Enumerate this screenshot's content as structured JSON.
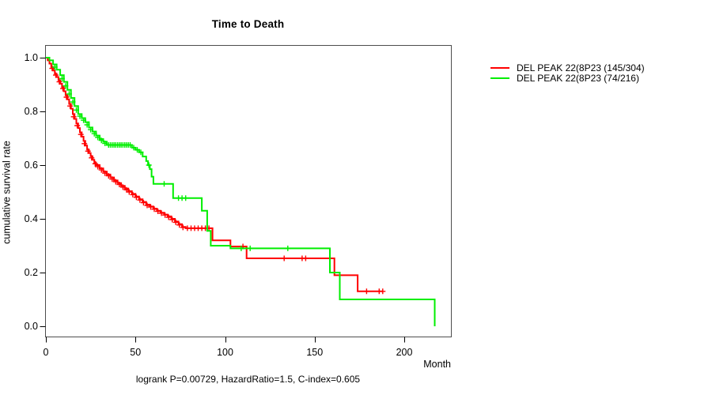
{
  "window": {
    "background": "#ffffff",
    "frame_color": "#4d4d4d"
  },
  "chart_data": {
    "type": "line",
    "subtype": "kaplan-meier-step",
    "title": "Time to Death",
    "xlabel": "Month",
    "ylabel": "cumulative survival rate",
    "annotation": "logrank P=0.00729, HazardRatio=1.5, C-index=0.605",
    "xlim": [
      0,
      226
    ],
    "ylim": [
      0.0,
      1.0
    ],
    "x_ticks": [
      0,
      50,
      100,
      150,
      200
    ],
    "y_ticks": [
      "1.0",
      "0.8",
      "0.6",
      "0.4",
      "0.2",
      "0.0"
    ],
    "grid": false,
    "legend_position": "outside-top-right",
    "series": [
      {
        "key": "red",
        "label": "DEL PEAK 22(8P23 (145/304)",
        "events": "145/304",
        "color": "#ff0000",
        "end_month": 188,
        "steps": [
          [
            0,
            1.0
          ],
          [
            1,
            0.99
          ],
          [
            2,
            0.978
          ],
          [
            3,
            0.965
          ],
          [
            4,
            0.952
          ],
          [
            5,
            0.94
          ],
          [
            6,
            0.928
          ],
          [
            7,
            0.916
          ],
          [
            8,
            0.903
          ],
          [
            9,
            0.89
          ],
          [
            10,
            0.875
          ],
          [
            11,
            0.86
          ],
          [
            12,
            0.845
          ],
          [
            13,
            0.828
          ],
          [
            14,
            0.81
          ],
          [
            15,
            0.79
          ],
          [
            16,
            0.772
          ],
          [
            17,
            0.755
          ],
          [
            18,
            0.738
          ],
          [
            19,
            0.722
          ],
          [
            20,
            0.706
          ],
          [
            21,
            0.69
          ],
          [
            22,
            0.673
          ],
          [
            23,
            0.658
          ],
          [
            24,
            0.645
          ],
          [
            25,
            0.633
          ],
          [
            26,
            0.62
          ],
          [
            27,
            0.61
          ],
          [
            28,
            0.6
          ],
          [
            30,
            0.588
          ],
          [
            32,
            0.576
          ],
          [
            34,
            0.565
          ],
          [
            36,
            0.554
          ],
          [
            38,
            0.543
          ],
          [
            40,
            0.533
          ],
          [
            42,
            0.523
          ],
          [
            44,
            0.513
          ],
          [
            46,
            0.503
          ],
          [
            48,
            0.493
          ],
          [
            50,
            0.483
          ],
          [
            52,
            0.473
          ],
          [
            54,
            0.463
          ],
          [
            56,
            0.453
          ],
          [
            58,
            0.446
          ],
          [
            60,
            0.438
          ],
          [
            62,
            0.43
          ],
          [
            64,
            0.423
          ],
          [
            66,
            0.416
          ],
          [
            68,
            0.409
          ],
          [
            70,
            0.4
          ],
          [
            72,
            0.39
          ],
          [
            74,
            0.38
          ],
          [
            76,
            0.37
          ],
          [
            78,
            0.365
          ],
          [
            93,
            0.32
          ],
          [
            103,
            0.297
          ],
          [
            112,
            0.253
          ],
          [
            161,
            0.19
          ],
          [
            174,
            0.13
          ]
        ],
        "censors": [
          [
            3.5,
            0.96
          ],
          [
            5.5,
            0.935
          ],
          [
            7.5,
            0.91
          ],
          [
            9.5,
            0.885
          ],
          [
            11.5,
            0.853
          ],
          [
            13.5,
            0.82
          ],
          [
            15.5,
            0.78
          ],
          [
            17.5,
            0.747
          ],
          [
            19.5,
            0.714
          ],
          [
            21.5,
            0.68
          ],
          [
            23.5,
            0.652
          ],
          [
            25.5,
            0.627
          ],
          [
            27.5,
            0.605
          ],
          [
            29,
            0.594
          ],
          [
            31,
            0.582
          ],
          [
            33,
            0.57
          ],
          [
            35,
            0.56
          ],
          [
            37,
            0.548
          ],
          [
            39,
            0.538
          ],
          [
            41,
            0.528
          ],
          [
            43,
            0.518
          ],
          [
            45,
            0.508
          ],
          [
            46.5,
            0.5
          ],
          [
            48.5,
            0.49
          ],
          [
            50.5,
            0.48
          ],
          [
            52.5,
            0.47
          ],
          [
            54.5,
            0.46
          ],
          [
            56.5,
            0.45
          ],
          [
            58.5,
            0.444
          ],
          [
            60.5,
            0.436
          ],
          [
            62.5,
            0.428
          ],
          [
            64.5,
            0.421
          ],
          [
            66.5,
            0.414
          ],
          [
            68.5,
            0.406
          ],
          [
            70.5,
            0.397
          ],
          [
            72.5,
            0.387
          ],
          [
            74.5,
            0.377
          ],
          [
            76.5,
            0.368
          ],
          [
            79,
            0.365
          ],
          [
            81,
            0.365
          ],
          [
            83,
            0.365
          ],
          [
            85,
            0.365
          ],
          [
            87,
            0.365
          ],
          [
            89,
            0.365
          ],
          [
            91,
            0.365
          ],
          [
            110,
            0.297
          ],
          [
            133,
            0.253
          ],
          [
            143,
            0.253
          ],
          [
            145,
            0.253
          ],
          [
            179,
            0.13
          ],
          [
            186,
            0.13
          ],
          [
            188,
            0.13
          ]
        ]
      },
      {
        "key": "green",
        "label": "DEL PEAK 22(8P23 (74/216)",
        "events": "74/216",
        "color": "#00ee00",
        "end_month": 217,
        "steps": [
          [
            0,
            1.0
          ],
          [
            2,
            0.99
          ],
          [
            4,
            0.975
          ],
          [
            6,
            0.955
          ],
          [
            8,
            0.935
          ],
          [
            10,
            0.91
          ],
          [
            12,
            0.88
          ],
          [
            14,
            0.85
          ],
          [
            16,
            0.82
          ],
          [
            18,
            0.79
          ],
          [
            20,
            0.775
          ],
          [
            22,
            0.76
          ],
          [
            24,
            0.74
          ],
          [
            26,
            0.725
          ],
          [
            28,
            0.71
          ],
          [
            30,
            0.697
          ],
          [
            32,
            0.687
          ],
          [
            34,
            0.675
          ],
          [
            48,
            0.665
          ],
          [
            50,
            0.657
          ],
          [
            52,
            0.648
          ],
          [
            54,
            0.632
          ],
          [
            56,
            0.615
          ],
          [
            57,
            0.6
          ],
          [
            58,
            0.585
          ],
          [
            59,
            0.557
          ],
          [
            60,
            0.53
          ],
          [
            71,
            0.477
          ],
          [
            87,
            0.43
          ],
          [
            90,
            0.355
          ],
          [
            92,
            0.3
          ],
          [
            103,
            0.29
          ],
          [
            158.5,
            0.2
          ],
          [
            164,
            0.1
          ],
          [
            217,
            0.0
          ]
        ],
        "censors": [
          [
            5,
            0.965
          ],
          [
            9,
            0.922
          ],
          [
            11,
            0.895
          ],
          [
            13,
            0.865
          ],
          [
            15,
            0.835
          ],
          [
            17,
            0.805
          ],
          [
            19,
            0.782
          ],
          [
            21,
            0.767
          ],
          [
            23,
            0.75
          ],
          [
            25,
            0.732
          ],
          [
            27,
            0.717
          ],
          [
            29,
            0.703
          ],
          [
            31,
            0.692
          ],
          [
            33,
            0.681
          ],
          [
            35,
            0.675
          ],
          [
            36,
            0.675
          ],
          [
            37,
            0.675
          ],
          [
            38,
            0.675
          ],
          [
            39,
            0.675
          ],
          [
            40,
            0.675
          ],
          [
            41,
            0.675
          ],
          [
            42,
            0.675
          ],
          [
            43,
            0.675
          ],
          [
            44,
            0.675
          ],
          [
            45,
            0.675
          ],
          [
            46,
            0.675
          ],
          [
            47,
            0.675
          ],
          [
            49,
            0.665
          ],
          [
            51,
            0.657
          ],
          [
            53,
            0.648
          ],
          [
            57.5,
            0.6
          ],
          [
            66,
            0.53
          ],
          [
            74,
            0.477
          ],
          [
            76,
            0.477
          ],
          [
            78,
            0.477
          ],
          [
            109,
            0.29
          ],
          [
            114,
            0.29
          ],
          [
            135,
            0.29
          ]
        ]
      }
    ]
  }
}
